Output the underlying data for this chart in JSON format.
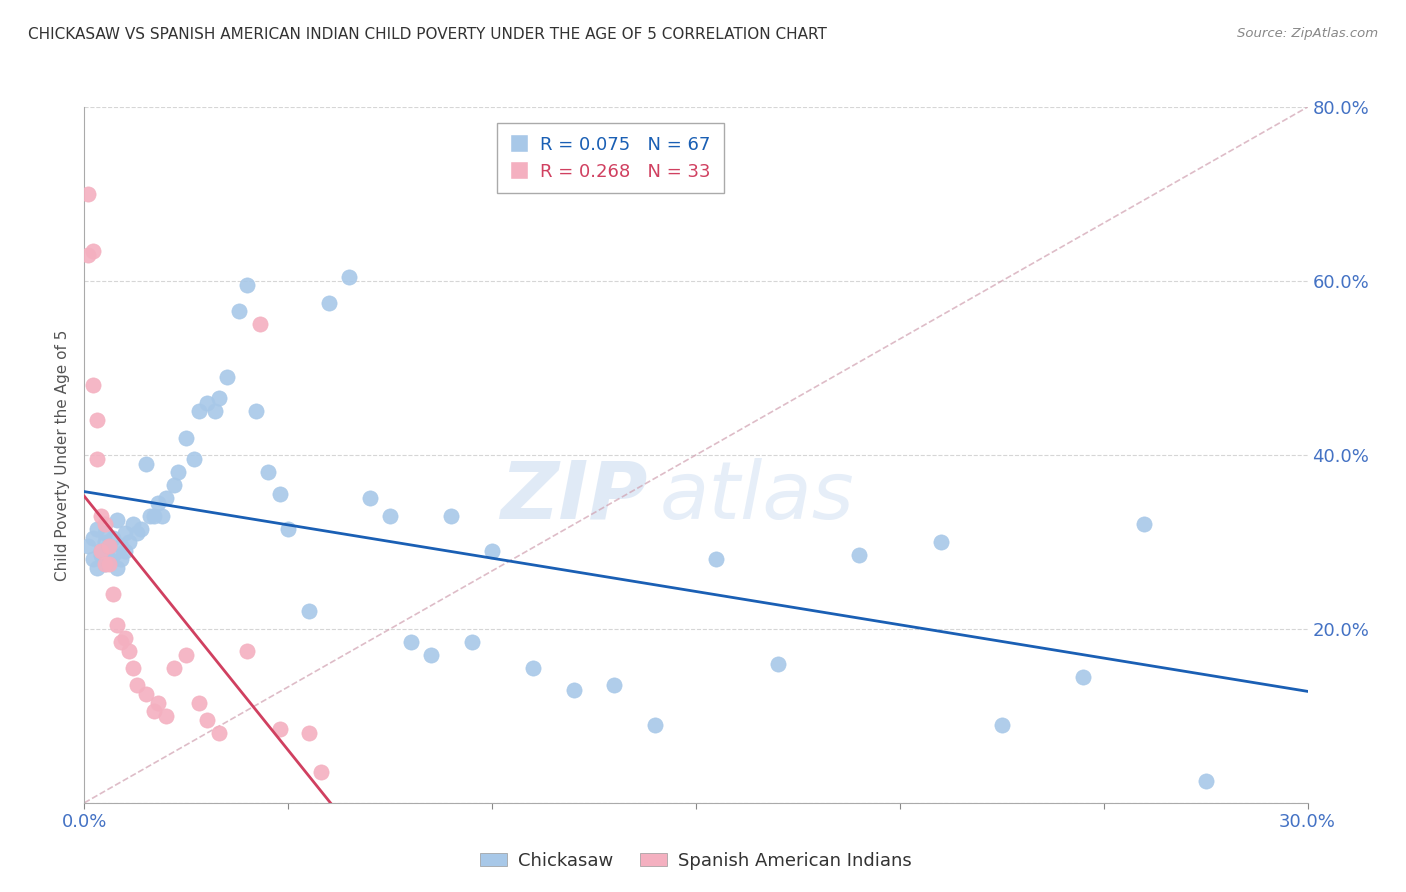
{
  "title": "CHICKASAW VS SPANISH AMERICAN INDIAN CHILD POVERTY UNDER THE AGE OF 5 CORRELATION CHART",
  "source": "Source: ZipAtlas.com",
  "ylabel": "Child Poverty Under the Age of 5",
  "xlim": [
    0.0,
    0.3
  ],
  "ylim": [
    0.0,
    0.8
  ],
  "xticks": [
    0.0,
    0.05,
    0.1,
    0.15,
    0.2,
    0.25,
    0.3
  ],
  "yticks": [
    0.0,
    0.2,
    0.4,
    0.6,
    0.8
  ],
  "chickasaw_color": "#a8c8e8",
  "spanish_color": "#f4b0c0",
  "trend_chickasaw_color": "#1a5fb4",
  "trend_spanish_color": "#d04060",
  "diag_color": "#d0a0b0",
  "R_chickasaw": 0.075,
  "N_chickasaw": 67,
  "R_spanish": 0.268,
  "N_spanish": 33,
  "chickasaw_x": [
    0.001,
    0.002,
    0.002,
    0.003,
    0.003,
    0.004,
    0.004,
    0.005,
    0.005,
    0.005,
    0.006,
    0.006,
    0.007,
    0.007,
    0.008,
    0.008,
    0.009,
    0.009,
    0.01,
    0.01,
    0.011,
    0.012,
    0.013,
    0.014,
    0.015,
    0.016,
    0.017,
    0.018,
    0.019,
    0.02,
    0.022,
    0.023,
    0.025,
    0.027,
    0.028,
    0.03,
    0.032,
    0.033,
    0.035,
    0.038,
    0.04,
    0.042,
    0.045,
    0.048,
    0.05,
    0.055,
    0.06,
    0.065,
    0.07,
    0.075,
    0.08,
    0.085,
    0.09,
    0.095,
    0.1,
    0.11,
    0.12,
    0.13,
    0.14,
    0.155,
    0.17,
    0.19,
    0.21,
    0.225,
    0.245,
    0.26,
    0.275
  ],
  "chickasaw_y": [
    0.295,
    0.28,
    0.305,
    0.27,
    0.315,
    0.29,
    0.285,
    0.275,
    0.3,
    0.31,
    0.28,
    0.295,
    0.285,
    0.305,
    0.27,
    0.325,
    0.28,
    0.295,
    0.29,
    0.31,
    0.3,
    0.32,
    0.31,
    0.315,
    0.39,
    0.33,
    0.33,
    0.345,
    0.33,
    0.35,
    0.365,
    0.38,
    0.42,
    0.395,
    0.45,
    0.46,
    0.45,
    0.465,
    0.49,
    0.565,
    0.595,
    0.45,
    0.38,
    0.355,
    0.315,
    0.22,
    0.575,
    0.605,
    0.35,
    0.33,
    0.185,
    0.17,
    0.33,
    0.185,
    0.29,
    0.155,
    0.13,
    0.135,
    0.09,
    0.28,
    0.16,
    0.285,
    0.3,
    0.09,
    0.145,
    0.32,
    0.025
  ],
  "spanish_x": [
    0.001,
    0.001,
    0.002,
    0.002,
    0.003,
    0.003,
    0.004,
    0.004,
    0.005,
    0.005,
    0.006,
    0.006,
    0.007,
    0.008,
    0.009,
    0.01,
    0.011,
    0.012,
    0.013,
    0.015,
    0.017,
    0.018,
    0.02,
    0.022,
    0.025,
    0.028,
    0.03,
    0.033,
    0.04,
    0.043,
    0.048,
    0.055,
    0.058
  ],
  "spanish_y": [
    0.7,
    0.63,
    0.635,
    0.48,
    0.44,
    0.395,
    0.29,
    0.33,
    0.275,
    0.32,
    0.275,
    0.295,
    0.24,
    0.205,
    0.185,
    0.19,
    0.175,
    0.155,
    0.135,
    0.125,
    0.105,
    0.115,
    0.1,
    0.155,
    0.17,
    0.115,
    0.095,
    0.08,
    0.175,
    0.55,
    0.085,
    0.08,
    0.035
  ],
  "watermark_zip": "ZIP",
  "watermark_atlas": "atlas",
  "background_color": "#ffffff",
  "grid_color": "#cccccc",
  "tick_color": "#4472c4",
  "label_color": "#555555"
}
